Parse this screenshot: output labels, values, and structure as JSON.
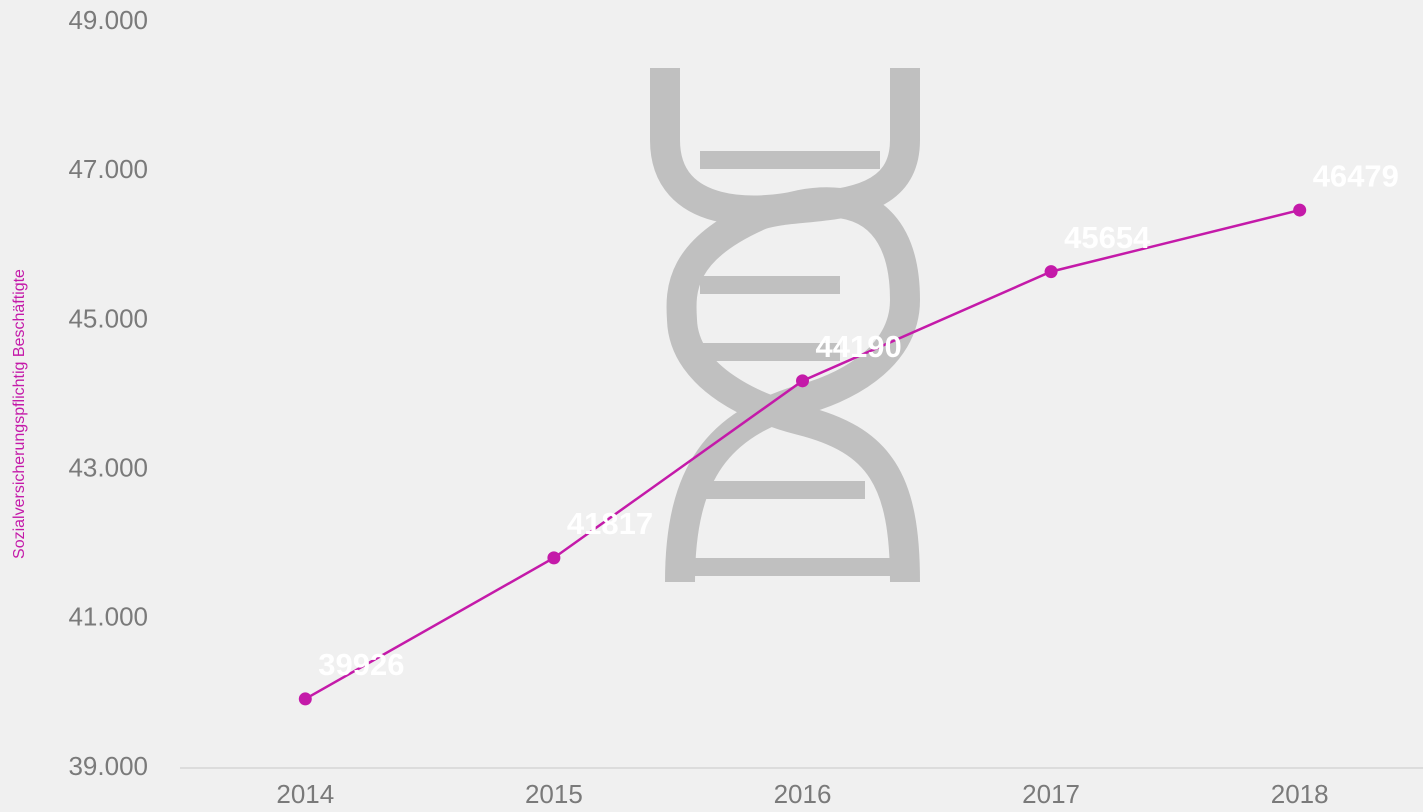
{
  "chart_data": {
    "type": "line",
    "y_label": "Sozialversicherungspflichtig Beschäftigte",
    "categories": [
      "2014",
      "2015",
      "2016",
      "2017",
      "2018"
    ],
    "series": [
      {
        "name": "Sozialversicherungspflichtig Beschäftigte",
        "color": "#c41aa9",
        "values": [
          39926,
          41817,
          44190,
          45654,
          46479
        ]
      }
    ],
    "ylim": [
      39000,
      49000
    ],
    "yticks": [
      {
        "value": 39000,
        "label": "39.000"
      },
      {
        "value": 41000,
        "label": "41.000"
      },
      {
        "value": 43000,
        "label": "43.000"
      },
      {
        "value": 45000,
        "label": "45.000"
      },
      {
        "value": 47000,
        "label": "47.000"
      },
      {
        "value": 49000,
        "label": "49.000"
      }
    ],
    "data_labels": true,
    "grid": false
  }
}
